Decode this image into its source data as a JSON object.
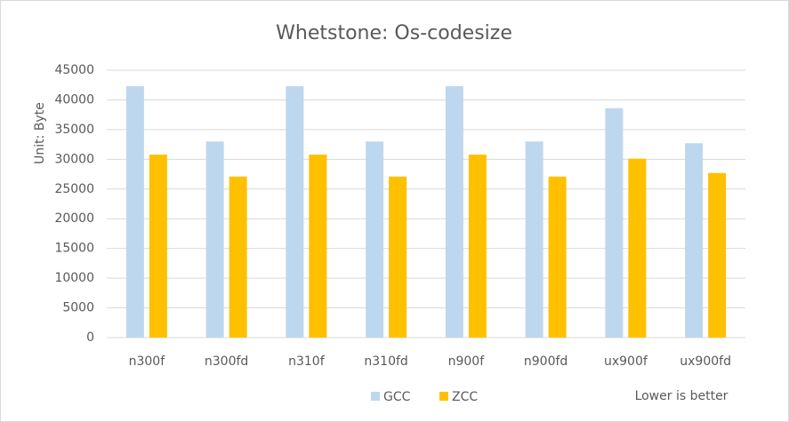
{
  "chart_data": {
    "type": "bar",
    "title": "Whetstone: Os-codesize",
    "y_label": "Unit: Byte",
    "annotation": "Lower is better",
    "categories": [
      "n300f",
      "n300fd",
      "n310f",
      "n310fd",
      "n900f",
      "n900fd",
      "ux900f",
      "ux900fd"
    ],
    "series": [
      {
        "name": "GCC",
        "color": "#bdd7ee",
        "values": [
          42300,
          33000,
          42300,
          33000,
          42300,
          33000,
          38600,
          32700
        ]
      },
      {
        "name": "ZCC",
        "color": "#ffc000",
        "values": [
          30800,
          27100,
          30800,
          27100,
          30800,
          27100,
          30100,
          27700
        ]
      }
    ],
    "ylim": [
      0,
      45000
    ],
    "yticks": [
      0,
      5000,
      10000,
      15000,
      20000,
      25000,
      30000,
      35000,
      40000,
      45000
    ],
    "grid": true,
    "legend": "bottom"
  }
}
